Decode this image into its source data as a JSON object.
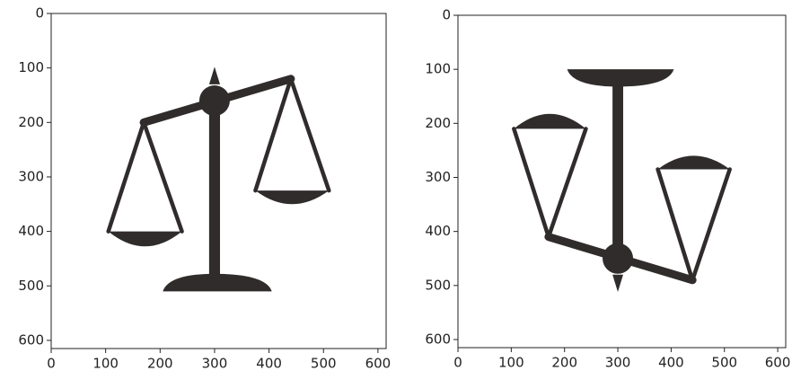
{
  "chart_data": [
    {
      "type": "image",
      "xlim": [
        0,
        615
      ],
      "ylim": [
        615,
        0
      ],
      "xticks": [
        0,
        100,
        200,
        300,
        400,
        500,
        600
      ],
      "yticks": [
        0,
        100,
        200,
        300,
        400,
        500,
        600
      ]
    },
    {
      "type": "image",
      "xlim": [
        0,
        615
      ],
      "ylim": [
        615,
        0
      ],
      "xticks": [
        0,
        100,
        200,
        300,
        400,
        500,
        600
      ],
      "yticks": [
        0,
        100,
        200,
        300,
        400,
        500,
        600
      ]
    }
  ]
}
